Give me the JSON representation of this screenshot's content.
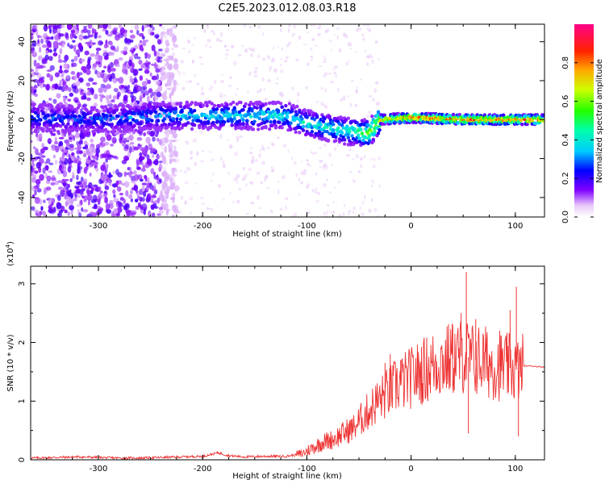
{
  "figure_title": "C2E5.2023.012.08.03.R18",
  "chart_data": [
    {
      "type": "heatmap",
      "title": "C2E5.2023.012.08.03.R18",
      "xlabel": "Height of straight line (km)",
      "ylabel": "Frequency (Hz)",
      "xlim": [
        -365,
        128
      ],
      "ylim": [
        -50,
        49
      ],
      "x_ticks": [
        -300,
        -200,
        -100,
        0,
        100
      ],
      "y_ticks": [
        -40,
        -20,
        0,
        20,
        40
      ],
      "x_tick_labels": [
        "-300",
        "-200",
        "-100",
        "0",
        "100"
      ],
      "y_tick_labels": [
        "-40",
        "-20",
        "0",
        "20",
        "40"
      ],
      "colorbar": {
        "label": "Normalized spectral amplitude",
        "range": [
          0,
          1
        ],
        "ticks": [
          0.0,
          0.2,
          0.4,
          0.6,
          0.8
        ],
        "tick_labels": [
          "0.0",
          "0.2",
          "0.4",
          "0.6",
          "0.8"
        ],
        "colormap": "rainbow (white-violet-blue-cyan-green-yellow-red-magenta)"
      },
      "ridge_frequency_hz": [
        {
          "x": -350,
          "y": 1
        },
        {
          "x": -300,
          "y": 0
        },
        {
          "x": -240,
          "y": 2
        },
        {
          "x": -200,
          "y": 2
        },
        {
          "x": -150,
          "y": 2
        },
        {
          "x": -120,
          "y": 2
        },
        {
          "x": -100,
          "y": -2
        },
        {
          "x": -80,
          "y": -4
        },
        {
          "x": -60,
          "y": -6
        },
        {
          "x": -40,
          "y": -7
        },
        {
          "x": -30,
          "y": 0
        },
        {
          "x": 0,
          "y": 1
        },
        {
          "x": 50,
          "y": 0
        },
        {
          "x": 100,
          "y": 0
        },
        {
          "x": 128,
          "y": 0
        }
      ],
      "ridge_amplitude": [
        {
          "x": -350,
          "y": 0.3
        },
        {
          "x": -300,
          "y": 0.3
        },
        {
          "x": -240,
          "y": 0.35
        },
        {
          "x": -150,
          "y": 0.4
        },
        {
          "x": -100,
          "y": 0.42
        },
        {
          "x": -60,
          "y": 0.45
        },
        {
          "x": -30,
          "y": 0.7
        },
        {
          "x": 0,
          "y": 0.85
        },
        {
          "x": 50,
          "y": 0.9
        },
        {
          "x": 100,
          "y": 0.9
        },
        {
          "x": 128,
          "y": 0.85
        }
      ]
    },
    {
      "type": "line",
      "xlabel": "Height of straight line (km)",
      "ylabel": "SNR (10 * v/v)",
      "scale_label": "(x10",
      "scale_exponent": "4",
      "scale_suffix": ")",
      "xlim": [
        -365,
        128
      ],
      "ylim": [
        0,
        3.3
      ],
      "x_ticks": [
        -300,
        -200,
        -100,
        0,
        100
      ],
      "y_ticks": [
        0,
        1,
        2,
        3
      ],
      "x_tick_labels": [
        "-300",
        "-200",
        "-100",
        "0",
        "100"
      ],
      "y_tick_labels": [
        "0",
        "1",
        "2",
        "3"
      ],
      "color": "#ee3333",
      "series": [
        {
          "x": [
            -365,
            -340,
            -320,
            -300,
            -280,
            -260,
            -240,
            -220,
            -200,
            -185,
            -175,
            -160,
            -140,
            -120,
            -105,
            -95,
            -85,
            -75,
            -65,
            -55,
            -45,
            -35,
            -25,
            -15,
            -5,
            5,
            15,
            25,
            35,
            45,
            52,
            60,
            70,
            80,
            90,
            100,
            104,
            108,
            115,
            128
          ],
          "y": [
            0.03,
            0.04,
            0.05,
            0.04,
            0.03,
            0.03,
            0.04,
            0.05,
            0.06,
            0.12,
            0.07,
            0.05,
            0.06,
            0.06,
            0.1,
            0.2,
            0.3,
            0.35,
            0.45,
            0.55,
            0.75,
            0.95,
            1.1,
            1.25,
            1.35,
            1.45,
            1.55,
            1.65,
            1.7,
            1.75,
            1.78,
            1.7,
            1.68,
            1.62,
            1.58,
            1.55,
            1.5,
            1.6,
            1.6,
            1.58
          ],
          "spikes": [
            {
              "x": 53,
              "y": 3.2
            },
            {
              "x": 55,
              "y": 0.45
            },
            {
              "x": 101,
              "y": 2.95
            },
            {
              "x": 103,
              "y": 0.4
            },
            {
              "x": 95,
              "y": 2.55
            },
            {
              "x": 62,
              "y": 2.4
            },
            {
              "x": 48,
              "y": 2.5
            },
            {
              "x": 40,
              "y": 2.3
            },
            {
              "x": -25,
              "y": 1.65
            },
            {
              "x": -20,
              "y": 1.8
            },
            {
              "x": -10,
              "y": 1.7
            },
            {
              "x": 85,
              "y": 2.2
            }
          ]
        }
      ]
    }
  ]
}
